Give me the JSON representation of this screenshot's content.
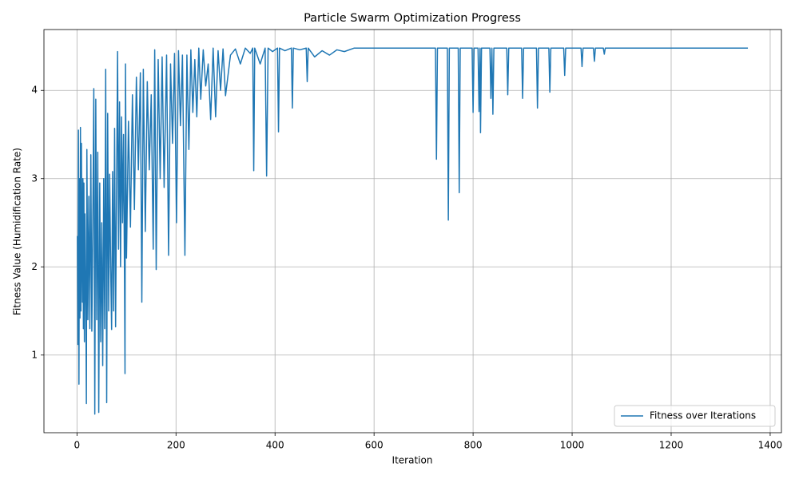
{
  "chart_data": {
    "type": "line",
    "title": "Particle Swarm Optimization Progress",
    "x_label": "Iteration",
    "y_label": "Fitness Value (Humidification Rate)",
    "xlim": [
      -66.7,
      1422.7
    ],
    "ylim": [
      0.12,
      4.69
    ],
    "xticks": [
      0,
      200,
      400,
      600,
      800,
      1000,
      1200,
      1400
    ],
    "yticks": [
      1,
      2,
      3,
      4
    ],
    "grid": true,
    "legend": "lower right",
    "series": [
      {
        "name": "Fitness over Iterations",
        "color": "#1f77b4",
        "x": [
          1,
          2,
          3,
          4,
          5,
          6,
          7,
          8,
          9,
          10,
          11,
          12,
          13,
          14,
          15,
          16,
          17,
          18,
          19,
          20,
          22,
          24,
          26,
          28,
          30,
          32,
          34,
          36,
          38,
          40,
          42,
          44,
          46,
          48,
          50,
          52,
          54,
          56,
          58,
          60,
          62,
          64,
          66,
          68,
          70,
          72,
          74,
          76,
          78,
          80,
          82,
          84,
          86,
          88,
          90,
          92,
          94,
          96,
          97,
          98,
          100,
          104,
          108,
          112,
          116,
          120,
          124,
          128,
          131,
          134,
          138,
          142,
          146,
          150,
          154,
          157,
          160,
          164,
          168,
          172,
          176,
          181,
          185,
          189,
          193,
          197,
          201,
          205,
          209,
          213,
          218,
          222,
          226,
          230,
          234,
          238,
          242,
          246,
          250,
          255,
          260,
          265,
          270,
          275,
          280,
          285,
          290,
          295,
          300,
          310,
          320,
          330,
          340,
          350,
          355,
          357,
          359,
          370,
          380,
          383,
          386,
          395,
          405,
          407,
          409,
          420,
          433,
          435,
          437,
          450,
          463,
          465,
          467,
          480,
          495,
          510,
          525,
          540,
          560,
          600,
          724,
          726,
          728,
          748,
          750,
          752,
          770,
          772,
          774,
          798,
          800,
          802,
          810,
          812,
          814,
          815,
          817,
          834,
          836,
          838,
          840,
          842,
          868,
          870,
          872,
          898,
          900,
          902,
          928,
          930,
          932,
          953,
          955,
          957,
          983,
          985,
          987,
          1018,
          1020,
          1022,
          1043,
          1045,
          1047,
          1063,
          1065,
          1067,
          1355
        ],
        "values": [
          2.35,
          1.12,
          3.55,
          0.67,
          3.0,
          1.42,
          3.58,
          1.5,
          3.4,
          2.2,
          1.6,
          3.0,
          1.3,
          2.95,
          1.15,
          2.6,
          2.0,
          1.5,
          0.45,
          3.33,
          1.4,
          2.8,
          1.3,
          3.27,
          1.27,
          2.5,
          4.02,
          0.33,
          3.9,
          1.4,
          3.3,
          0.35,
          2.95,
          1.15,
          2.5,
          0.88,
          3.0,
          1.3,
          4.24,
          0.46,
          3.74,
          1.5,
          3.05,
          2.0,
          1.29,
          3.08,
          1.5,
          3.57,
          1.32,
          2.9,
          4.44,
          2.2,
          3.87,
          2.0,
          3.7,
          2.5,
          3.5,
          1.9,
          0.79,
          4.3,
          2.1,
          3.65,
          2.45,
          3.95,
          2.65,
          4.15,
          3.1,
          4.2,
          1.6,
          4.24,
          2.4,
          4.1,
          3.1,
          3.95,
          2.2,
          4.46,
          1.97,
          4.35,
          3.0,
          4.38,
          2.9,
          4.4,
          2.13,
          4.3,
          3.4,
          4.42,
          2.5,
          4.45,
          3.6,
          4.4,
          2.13,
          4.4,
          3.33,
          4.46,
          3.75,
          4.35,
          3.7,
          4.48,
          3.9,
          4.46,
          4.05,
          4.3,
          3.67,
          4.48,
          3.7,
          4.45,
          4.0,
          4.47,
          3.94,
          4.4,
          4.47,
          4.3,
          4.48,
          4.42,
          4.48,
          3.09,
          4.48,
          4.3,
          4.48,
          3.03,
          4.48,
          4.44,
          4.48,
          3.53,
          4.48,
          4.45,
          4.48,
          3.8,
          4.48,
          4.46,
          4.48,
          4.1,
          4.48,
          4.38,
          4.45,
          4.4,
          4.46,
          4.44,
          4.48,
          4.48,
          4.48,
          3.22,
          4.48,
          4.48,
          2.53,
          4.48,
          4.48,
          2.84,
          4.48,
          4.48,
          3.75,
          4.48,
          4.48,
          3.76,
          4.48,
          3.52,
          4.48,
          4.48,
          3.91,
          4.48,
          3.73,
          4.48,
          4.48,
          3.95,
          4.48,
          4.48,
          3.91,
          4.48,
          4.48,
          3.8,
          4.48,
          4.48,
          3.98,
          4.48,
          4.48,
          4.17,
          4.48,
          4.48,
          4.27,
          4.48,
          4.48,
          4.33,
          4.48,
          4.48,
          4.41,
          4.48,
          4.48
        ]
      }
    ]
  }
}
